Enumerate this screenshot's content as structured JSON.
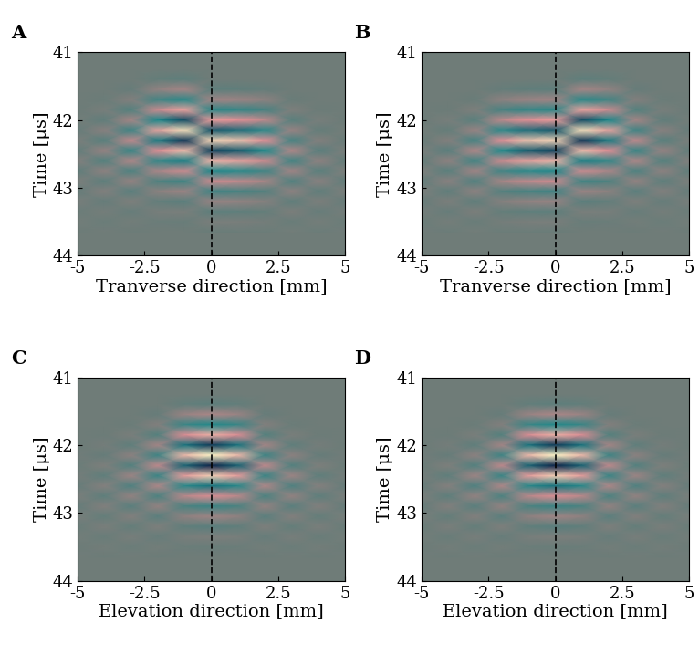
{
  "chart_data": [
    {
      "type": "heatmap",
      "title": "A",
      "x_label": "Tranverse direction [mm]",
      "y_label": "Time [μs]",
      "xlim": [
        -5,
        5
      ],
      "ylim": [
        44,
        41
      ],
      "xticks": [
        -5,
        -2.5,
        0,
        2.5,
        5
      ],
      "yticks": [
        41,
        42,
        43,
        44
      ],
      "reference_line_x": 0,
      "zlim": [
        -1,
        1
      ],
      "x": [
        -5,
        -4,
        -3,
        -2,
        -1,
        0,
        1,
        2,
        3,
        4,
        5
      ],
      "t": [
        41.25,
        41.4,
        41.55,
        41.7,
        41.85,
        42.0,
        42.15,
        42.3,
        42.45,
        42.6,
        42.75,
        42.9,
        43.05,
        43.2,
        43.35,
        43.5,
        43.65
      ],
      "cells_by_x": [
        [
          0,
          0,
          0,
          0,
          -0.01,
          0.02,
          -0.04,
          0.05,
          -0.07,
          0.08,
          -0.08,
          0.06,
          -0.05,
          0.04,
          -0.02,
          0.02,
          -0.01
        ],
        [
          0,
          0,
          0,
          -0.02,
          0.04,
          -0.08,
          0.11,
          -0.14,
          0.17,
          -0.16,
          0.14,
          -0.1,
          0.08,
          -0.05,
          0.03,
          -0.02,
          0.01
        ],
        [
          0,
          0,
          -0.04,
          0.09,
          -0.16,
          0.23,
          -0.3,
          0.35,
          -0.33,
          0.28,
          -0.21,
          0.16,
          -0.11,
          0.07,
          -0.04,
          0.02,
          -0.01
        ],
        [
          0,
          -0.06,
          0.15,
          -0.27,
          0.39,
          -0.51,
          0.6,
          -0.57,
          0.48,
          -0.36,
          0.27,
          -0.18,
          0.12,
          -0.07,
          0.04,
          -0.02,
          0
        ],
        [
          0,
          -0.09,
          0.23,
          -0.41,
          0.59,
          -0.77,
          0.9,
          -0.86,
          0.72,
          -0.54,
          0.41,
          -0.27,
          0.18,
          -0.11,
          0.05,
          -0.03,
          0
        ],
        [
          0,
          0,
          -0.09,
          0.21,
          -0.38,
          0.55,
          -0.72,
          0.85,
          -0.81,
          0.68,
          -0.51,
          0.38,
          -0.26,
          0.17,
          -0.1,
          0.05,
          -0.03
        ],
        [
          0,
          0,
          -0.08,
          0.19,
          -0.34,
          0.49,
          -0.64,
          0.75,
          -0.71,
          0.6,
          -0.45,
          0.34,
          -0.23,
          0.15,
          -0.09,
          0.05,
          -0.02
        ],
        [
          0,
          0,
          -0.05,
          0.13,
          -0.23,
          0.33,
          -0.43,
          0.5,
          -0.48,
          0.4,
          -0.3,
          0.23,
          -0.15,
          0.1,
          -0.06,
          0.03,
          -0.02
        ],
        [
          0,
          0,
          0,
          -0.03,
          0.07,
          -0.13,
          0.18,
          -0.24,
          0.28,
          -0.27,
          0.22,
          -0.17,
          0.13,
          -0.08,
          0.06,
          -0.03,
          0.02
        ],
        [
          0,
          0,
          0,
          0,
          -0.01,
          0.04,
          -0.06,
          0.09,
          -0.12,
          0.14,
          -0.13,
          0.11,
          -0.08,
          0.06,
          -0.04,
          0.03,
          -0.02
        ],
        [
          0,
          0,
          0,
          0,
          0,
          -0.01,
          0.02,
          -0.03,
          0.05,
          -0.06,
          0.07,
          -0.07,
          0.06,
          -0.04,
          0.03,
          -0.02,
          0.01
        ]
      ]
    },
    {
      "type": "heatmap",
      "title": "B",
      "x_label": "Tranverse direction [mm]",
      "y_label": "Time [μs]",
      "xlim": [
        -5,
        5
      ],
      "ylim": [
        44,
        41
      ],
      "xticks": [
        -5,
        -2.5,
        0,
        2.5,
        5
      ],
      "yticks": [
        41,
        42,
        43,
        44
      ],
      "reference_line_x": 0,
      "zlim": [
        -1,
        1
      ],
      "x": [
        -5,
        -4,
        -3,
        -2,
        -1,
        0,
        1,
        2,
        3,
        4,
        5
      ],
      "t": [
        41.25,
        41.4,
        41.55,
        41.7,
        41.85,
        42.0,
        42.15,
        42.3,
        42.45,
        42.6,
        42.75,
        42.9,
        43.05,
        43.2,
        43.35,
        43.5,
        43.65
      ],
      "cells_by_x": [
        [
          0,
          0,
          0,
          0,
          0,
          -0.01,
          0.02,
          -0.03,
          0.05,
          -0.06,
          0.07,
          -0.07,
          0.06,
          -0.04,
          0.03,
          -0.02,
          0.01
        ],
        [
          0,
          0,
          0,
          0,
          -0.01,
          0.04,
          -0.06,
          0.09,
          -0.12,
          0.14,
          -0.13,
          0.11,
          -0.08,
          0.06,
          -0.04,
          0.03,
          -0.02
        ],
        [
          0,
          0,
          0,
          -0.03,
          0.07,
          -0.13,
          0.18,
          -0.24,
          0.28,
          -0.27,
          0.22,
          -0.17,
          0.13,
          -0.08,
          0.06,
          -0.03,
          0.02
        ],
        [
          0,
          0,
          -0.05,
          0.13,
          -0.23,
          0.33,
          -0.43,
          0.5,
          -0.48,
          0.4,
          -0.3,
          0.23,
          -0.15,
          0.1,
          -0.06,
          0.03,
          -0.02
        ],
        [
          0,
          0,
          -0.08,
          0.19,
          -0.34,
          0.49,
          -0.64,
          0.75,
          -0.71,
          0.6,
          -0.45,
          0.34,
          -0.23,
          0.15,
          -0.09,
          0.05,
          -0.02
        ],
        [
          0,
          0,
          -0.09,
          0.21,
          -0.38,
          0.55,
          -0.72,
          0.85,
          -0.81,
          0.68,
          -0.51,
          0.38,
          -0.26,
          0.17,
          -0.1,
          0.05,
          -0.03
        ],
        [
          0,
          -0.09,
          0.23,
          -0.41,
          0.59,
          -0.77,
          0.9,
          -0.86,
          0.72,
          -0.54,
          0.41,
          -0.27,
          0.18,
          -0.11,
          0.05,
          -0.03,
          0
        ],
        [
          0,
          -0.06,
          0.15,
          -0.27,
          0.39,
          -0.51,
          0.6,
          -0.57,
          0.48,
          -0.36,
          0.27,
          -0.18,
          0.12,
          -0.07,
          0.04,
          -0.02,
          0
        ],
        [
          0,
          0,
          -0.04,
          0.09,
          -0.16,
          0.23,
          -0.3,
          0.35,
          -0.33,
          0.28,
          -0.21,
          0.16,
          -0.11,
          0.07,
          -0.04,
          0.02,
          -0.01
        ],
        [
          0,
          0,
          0,
          -0.02,
          0.04,
          -0.08,
          0.11,
          -0.14,
          0.17,
          -0.16,
          0.14,
          -0.1,
          0.08,
          -0.05,
          0.03,
          -0.02,
          0.01
        ],
        [
          0,
          0,
          0,
          0,
          -0.01,
          0.02,
          -0.04,
          0.05,
          -0.07,
          0.08,
          -0.08,
          0.06,
          -0.05,
          0.04,
          -0.02,
          0.02,
          -0.01
        ]
      ]
    },
    {
      "type": "heatmap",
      "title": "C",
      "x_label": "Elevation direction [mm]",
      "y_label": "Time [μs]",
      "xlim": [
        -5,
        5
      ],
      "ylim": [
        44,
        41
      ],
      "xticks": [
        -5,
        -2.5,
        0,
        2.5,
        5
      ],
      "yticks": [
        41,
        42,
        43,
        44
      ],
      "reference_line_x": 0,
      "zlim": [
        -1,
        1
      ],
      "x": [
        -5,
        -4,
        -3,
        -2,
        -1,
        0,
        1,
        2,
        3,
        4,
        5
      ],
      "t": [
        41.25,
        41.4,
        41.55,
        41.7,
        41.85,
        42.0,
        42.15,
        42.3,
        42.45,
        42.6,
        42.75,
        42.9,
        43.05,
        43.2,
        43.35,
        43.5,
        43.65
      ],
      "cells_by_x": [
        [
          0,
          0,
          0,
          0,
          0,
          -0.01,
          0.01,
          -0.02,
          0.03,
          -0.04,
          0.05,
          -0.05,
          0.04,
          -0.03,
          0.02,
          -0.01,
          0.01
        ],
        [
          0,
          0,
          0,
          0,
          -0.01,
          0.03,
          -0.05,
          0.07,
          -0.09,
          0.1,
          -0.1,
          0.08,
          -0.06,
          0.05,
          -0.03,
          0.02,
          -0.01
        ],
        [
          0,
          0,
          0,
          -0.02,
          0.05,
          -0.09,
          0.13,
          -0.17,
          0.2,
          -0.19,
          0.16,
          -0.12,
          0.09,
          -0.06,
          0.04,
          -0.02,
          0.01
        ],
        [
          0,
          0,
          -0.04,
          0.09,
          -0.16,
          0.23,
          -0.3,
          0.35,
          -0.33,
          0.28,
          -0.21,
          0.16,
          -0.11,
          0.07,
          -0.04,
          0.02,
          -0.01
        ],
        [
          0,
          -0.07,
          0.18,
          -0.32,
          0.46,
          -0.6,
          0.7,
          -0.67,
          0.56,
          -0.42,
          0.32,
          -0.21,
          0.14,
          -0.08,
          0.04,
          -0.02,
          0
        ],
        [
          0,
          -0.1,
          0.25,
          -0.45,
          0.65,
          -0.85,
          1.0,
          -0.95,
          0.8,
          -0.6,
          0.45,
          -0.3,
          0.2,
          -0.12,
          0.06,
          -0.03,
          0
        ],
        [
          0,
          -0.07,
          0.18,
          -0.32,
          0.46,
          -0.6,
          0.7,
          -0.67,
          0.56,
          -0.42,
          0.32,
          -0.21,
          0.14,
          -0.08,
          0.04,
          -0.02,
          0
        ],
        [
          0,
          0,
          -0.04,
          0.09,
          -0.16,
          0.23,
          -0.3,
          0.35,
          -0.33,
          0.28,
          -0.21,
          0.16,
          -0.11,
          0.07,
          -0.04,
          0.02,
          -0.01
        ],
        [
          0,
          0,
          0,
          -0.02,
          0.05,
          -0.09,
          0.13,
          -0.17,
          0.2,
          -0.19,
          0.16,
          -0.12,
          0.09,
          -0.06,
          0.04,
          -0.02,
          0.01
        ],
        [
          0,
          0,
          0,
          0,
          -0.01,
          0.03,
          -0.05,
          0.07,
          -0.09,
          0.1,
          -0.1,
          0.08,
          -0.06,
          0.05,
          -0.03,
          0.02,
          -0.01
        ],
        [
          0,
          0,
          0,
          0,
          0,
          -0.01,
          0.01,
          -0.02,
          0.03,
          -0.04,
          0.05,
          -0.05,
          0.04,
          -0.03,
          0.02,
          -0.01,
          0.01
        ]
      ]
    },
    {
      "type": "heatmap",
      "title": "D",
      "x_label": "Elevation direction [mm]",
      "y_label": "Time [μs]",
      "xlim": [
        -5,
        5
      ],
      "ylim": [
        44,
        41
      ],
      "xticks": [
        -5,
        -2.5,
        0,
        2.5,
        5
      ],
      "yticks": [
        41,
        42,
        43,
        44
      ],
      "reference_line_x": 0,
      "zlim": [
        -1,
        1
      ],
      "x": [
        -5,
        -4,
        -3,
        -2,
        -1,
        0,
        1,
        2,
        3,
        4,
        5
      ],
      "t": [
        41.25,
        41.4,
        41.55,
        41.7,
        41.85,
        42.0,
        42.15,
        42.3,
        42.45,
        42.6,
        42.75,
        42.9,
        43.05,
        43.2,
        43.35,
        43.5,
        43.65
      ],
      "cells_by_x": [
        [
          0,
          0,
          0,
          0,
          0,
          -0.01,
          0.01,
          -0.02,
          0.03,
          -0.04,
          0.05,
          -0.05,
          0.04,
          -0.03,
          0.02,
          -0.01,
          0.01
        ],
        [
          0,
          0,
          0,
          0,
          -0.01,
          0.03,
          -0.05,
          0.07,
          -0.09,
          0.1,
          -0.1,
          0.08,
          -0.06,
          0.05,
          -0.03,
          0.02,
          -0.01
        ],
        [
          0,
          0,
          0,
          -0.02,
          0.05,
          -0.09,
          0.13,
          -0.17,
          0.2,
          -0.19,
          0.16,
          -0.12,
          0.09,
          -0.06,
          0.04,
          -0.02,
          0.01
        ],
        [
          0,
          0,
          -0.04,
          0.09,
          -0.16,
          0.23,
          -0.3,
          0.35,
          -0.33,
          0.28,
          -0.21,
          0.16,
          -0.11,
          0.07,
          -0.04,
          0.02,
          -0.01
        ],
        [
          0,
          -0.07,
          0.18,
          -0.32,
          0.46,
          -0.6,
          0.7,
          -0.67,
          0.56,
          -0.42,
          0.32,
          -0.21,
          0.14,
          -0.08,
          0.04,
          -0.02,
          0
        ],
        [
          0,
          -0.1,
          0.25,
          -0.45,
          0.65,
          -0.85,
          1.0,
          -0.95,
          0.8,
          -0.6,
          0.45,
          -0.3,
          0.2,
          -0.12,
          0.06,
          -0.03,
          0
        ],
        [
          0,
          -0.07,
          0.18,
          -0.32,
          0.46,
          -0.6,
          0.7,
          -0.67,
          0.56,
          -0.42,
          0.32,
          -0.21,
          0.14,
          -0.08,
          0.04,
          -0.02,
          0
        ],
        [
          0,
          0,
          -0.04,
          0.09,
          -0.16,
          0.23,
          -0.3,
          0.35,
          -0.33,
          0.28,
          -0.21,
          0.16,
          -0.11,
          0.07,
          -0.04,
          0.02,
          -0.01
        ],
        [
          0,
          0,
          0,
          -0.02,
          0.05,
          -0.09,
          0.13,
          -0.17,
          0.2,
          -0.19,
          0.16,
          -0.12,
          0.09,
          -0.06,
          0.04,
          -0.02,
          0.01
        ],
        [
          0,
          0,
          0,
          0,
          -0.01,
          0.03,
          -0.05,
          0.07,
          -0.09,
          0.1,
          -0.1,
          0.08,
          -0.06,
          0.05,
          -0.03,
          0.02,
          -0.01
        ],
        [
          0,
          0,
          0,
          0,
          0,
          -0.01,
          0.01,
          -0.02,
          0.03,
          -0.04,
          0.05,
          -0.05,
          0.04,
          -0.03,
          0.02,
          -0.01,
          0.01
        ]
      ]
    }
  ]
}
